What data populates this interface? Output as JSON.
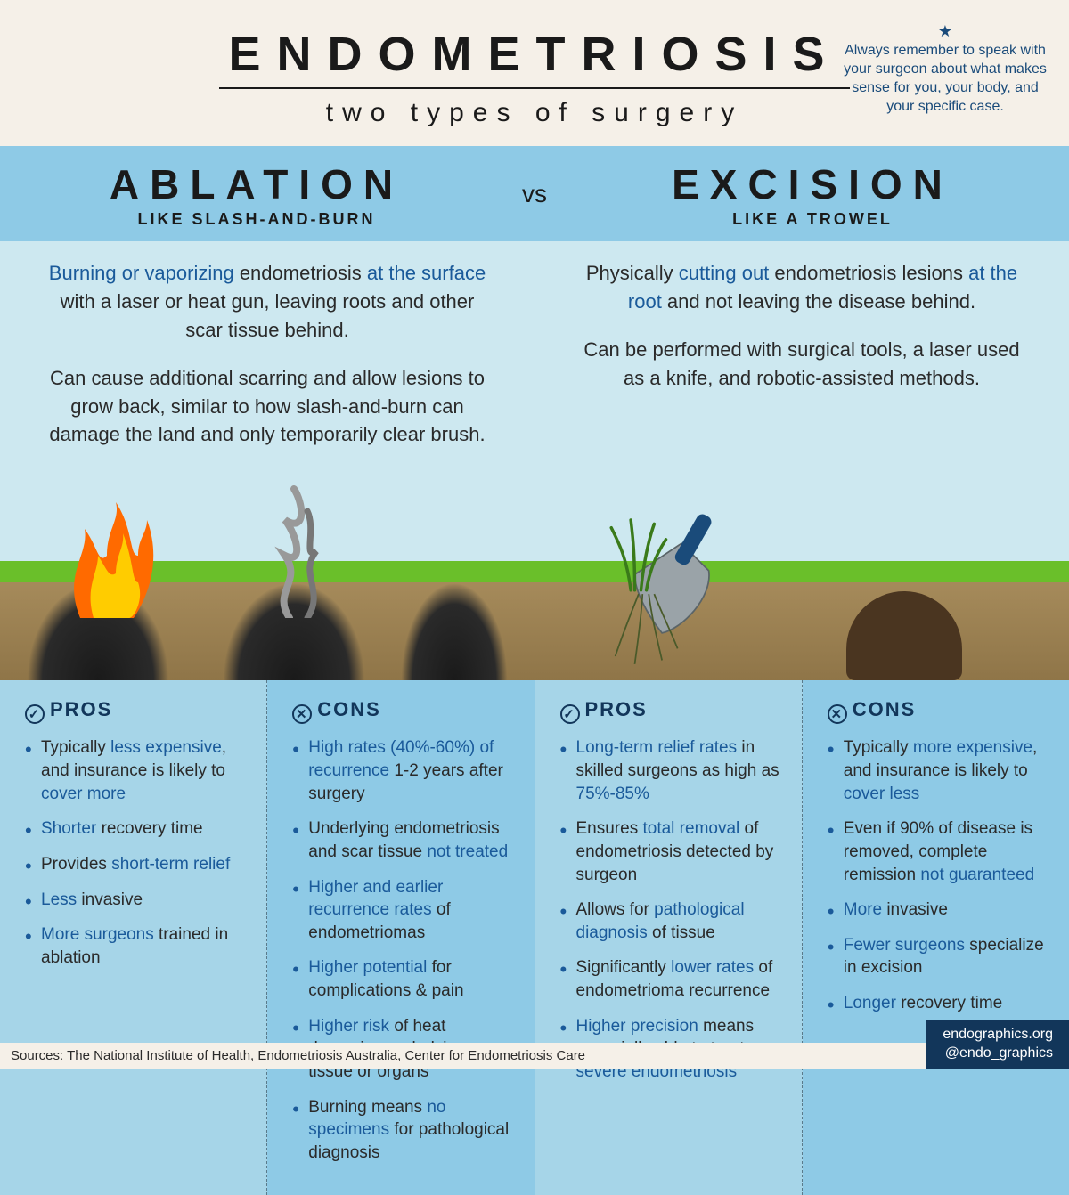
{
  "colors": {
    "cream_bg": "#f5f0e8",
    "band_blue": "#8ecae6",
    "panel_blue": "#cde8f0",
    "dark_navy": "#12365a",
    "link_blue": "#1a5a9a",
    "text_dark": "#1a1a1a",
    "soil_top": "#a68b5b",
    "soil_bot": "#8f7548",
    "grass": "#6abf2a",
    "hole": "#4a3520"
  },
  "header": {
    "title": "ENDOMETRIOSIS",
    "subtitle": "two types of surgery",
    "reminder": "Always remember to speak with your surgeon about what makes sense for you, your body, and your specific case."
  },
  "vs": {
    "left_name": "ABLATION",
    "left_tag": "LIKE SLASH-AND-BURN",
    "mid": "vs",
    "right_name": "EXCISION",
    "right_tag": "LIKE A TROWEL"
  },
  "desc": {
    "ablation_p1_a": "Burning or vaporizing",
    "ablation_p1_b": " endometriosis ",
    "ablation_p1_c": "at the surface",
    "ablation_p1_d": " with a laser or heat gun, leaving roots and other scar tissue behind.",
    "ablation_p2": "Can cause additional scarring and allow lesions to grow back, similar to how slash-and-burn can damage the land and only temporarily clear brush.",
    "excision_p1_a": "Physically ",
    "excision_p1_b": "cutting out",
    "excision_p1_c": " endometriosis lesions ",
    "excision_p1_d": "at the root",
    "excision_p1_e": " and not leaving the disease behind.",
    "excision_p2": "Can be performed with surgical tools, a laser used as a knife, and robotic-assisted methods."
  },
  "labels": {
    "pros": "PROS",
    "cons": "CONS",
    "check": "✓",
    "cross": "✕"
  },
  "ablation_pros": [
    [
      [
        "Typically ",
        false
      ],
      [
        "less expensive",
        true
      ],
      [
        ", and insurance is likely to ",
        false
      ],
      [
        "cover more",
        true
      ]
    ],
    [
      [
        "Shorter",
        true
      ],
      [
        " recovery time",
        false
      ]
    ],
    [
      [
        "Provides ",
        false
      ],
      [
        "short-term relief",
        true
      ]
    ],
    [
      [
        "Less",
        true
      ],
      [
        " invasive",
        false
      ]
    ],
    [
      [
        "More surgeons",
        true
      ],
      [
        " trained in ablation",
        false
      ]
    ]
  ],
  "ablation_cons": [
    [
      [
        "High rates (40%-60%) of recurrence",
        true
      ],
      [
        " 1-2 years after surgery",
        false
      ]
    ],
    [
      [
        "Underlying endometriosis and scar tissue ",
        false
      ],
      [
        "not treated",
        true
      ]
    ],
    [
      [
        "Higher and earlier recurrence rates",
        true
      ],
      [
        " of endometriomas",
        false
      ]
    ],
    [
      [
        "Higher potential",
        true
      ],
      [
        " for complications & pain",
        false
      ]
    ],
    [
      [
        "Higher risk",
        true
      ],
      [
        " of heat damaging underlying tissue or organs",
        false
      ]
    ],
    [
      [
        "Burning means ",
        false
      ],
      [
        "no specimens",
        true
      ],
      [
        " for pathological diagnosis",
        false
      ]
    ]
  ],
  "excision_pros": [
    [
      [
        "Long-term relief rates",
        true
      ],
      [
        " in skilled surgeons as high as ",
        false
      ],
      [
        "75%-85%",
        true
      ]
    ],
    [
      [
        "Ensures ",
        false
      ],
      [
        "total removal",
        true
      ],
      [
        " of endometriosis detected by surgeon",
        false
      ]
    ],
    [
      [
        "Allows for ",
        false
      ],
      [
        "pathological diagnosis",
        true
      ],
      [
        " of tissue",
        false
      ]
    ],
    [
      [
        "Significantly ",
        false
      ],
      [
        "lower rates",
        true
      ],
      [
        " of endometrioma recurrence",
        false
      ]
    ],
    [
      [
        "Higher precision",
        true
      ],
      [
        " means especially able to treat ",
        false
      ],
      [
        "severe endometriosis",
        true
      ]
    ]
  ],
  "excision_cons": [
    [
      [
        "Typically ",
        false
      ],
      [
        "more expensive",
        true
      ],
      [
        ", and insurance is likely to ",
        false
      ],
      [
        "cover less",
        true
      ]
    ],
    [
      [
        "Even if 90% of disease is removed, complete remission ",
        false
      ],
      [
        "not guaranteed",
        true
      ]
    ],
    [
      [
        "More",
        true
      ],
      [
        " invasive",
        false
      ]
    ],
    [
      [
        "Fewer surgeons",
        true
      ],
      [
        " specialize in excision",
        false
      ]
    ],
    [
      [
        "Longer",
        true
      ],
      [
        " recovery time",
        false
      ]
    ]
  ],
  "footer": {
    "sources": "Sources: The National Institute of Health, Endometriosis Australia, Center for Endometriosis Care",
    "credit1": "endographics.org",
    "credit2": "@endo_graphics"
  }
}
